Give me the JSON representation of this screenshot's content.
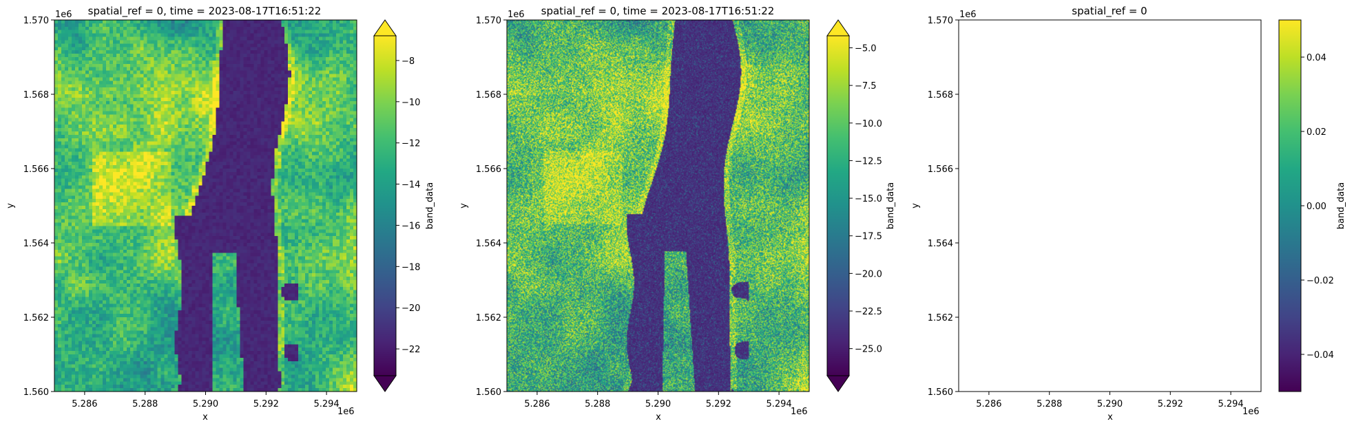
{
  "chart_data": [
    {
      "type": "heatmap",
      "title": "spatial_ref = 0, time = 2023-08-17T16:51:22",
      "xlabel": "x",
      "ylabel": "y",
      "x_offset_label": "1e6",
      "y_offset_label": "1e6",
      "xticks": [
        "5.286",
        "5.288",
        "5.290",
        "5.292",
        "5.294"
      ],
      "xtick_values": [
        5.286,
        5.288,
        5.29,
        5.292,
        5.294
      ],
      "yticks": [
        "1.560",
        "1.562",
        "1.564",
        "1.566",
        "1.568",
        "1.570"
      ],
      "ytick_values": [
        1.56,
        1.562,
        1.564,
        1.566,
        1.568,
        1.57
      ],
      "xlim": [
        5.285,
        5.295
      ],
      "ylim": [
        1.56,
        1.57
      ],
      "colorbar_label": "band_data",
      "colorbar_ticks": [
        "−8",
        "−10",
        "−12",
        "−14",
        "−16",
        "−18",
        "−20",
        "−22"
      ],
      "colorbar_tick_values": [
        -8,
        -10,
        -12,
        -14,
        -16,
        -18,
        -20,
        -22
      ],
      "colorbar_range": [
        -23.3,
        -6.8
      ],
      "colorbar_extend": "both",
      "colormap": "viridis",
      "resolution": "coarse"
    },
    {
      "type": "heatmap",
      "title": "spatial_ref = 0, time = 2023-08-17T16:51:22",
      "xlabel": "x",
      "ylabel": "y",
      "x_offset_label": "1e6",
      "y_offset_label": "1e6",
      "xticks": [
        "5.286",
        "5.288",
        "5.290",
        "5.292",
        "5.294"
      ],
      "xtick_values": [
        5.286,
        5.288,
        5.29,
        5.292,
        5.294
      ],
      "yticks": [
        "1.560",
        "1.562",
        "1.564",
        "1.566",
        "1.568",
        "1.570"
      ],
      "ytick_values": [
        1.56,
        1.562,
        1.564,
        1.566,
        1.568,
        1.57
      ],
      "xlim": [
        5.285,
        5.295
      ],
      "ylim": [
        1.56,
        1.57
      ],
      "colorbar_label": "band_data",
      "colorbar_ticks": [
        "−5.0",
        "−7.5",
        "−10.0",
        "−12.5",
        "−15.0",
        "−17.5",
        "−20.0",
        "−22.5",
        "−25.0"
      ],
      "colorbar_tick_values": [
        -5.0,
        -7.5,
        -10.0,
        -12.5,
        -15.0,
        -17.5,
        -20.0,
        -22.5,
        -25.0
      ],
      "colorbar_range": [
        -26.8,
        -4.2
      ],
      "colorbar_extend": "both",
      "colormap": "viridis",
      "resolution": "fine"
    },
    {
      "type": "heatmap",
      "title": "spatial_ref = 0",
      "xlabel": "x",
      "ylabel": "y",
      "x_offset_label": "1e6",
      "y_offset_label": "1e6",
      "xticks": [
        "5.286",
        "5.288",
        "5.290",
        "5.292",
        "5.294"
      ],
      "xtick_values": [
        5.286,
        5.288,
        5.29,
        5.292,
        5.294
      ],
      "yticks": [
        "1.560",
        "1.562",
        "1.564",
        "1.566",
        "1.568",
        "1.570"
      ],
      "ytick_values": [
        1.56,
        1.562,
        1.564,
        1.566,
        1.568,
        1.57
      ],
      "xlim": [
        5.285,
        5.295
      ],
      "ylim": [
        1.56,
        1.57
      ],
      "colorbar_label": "band_data",
      "colorbar_ticks": [
        "0.04",
        "0.02",
        "0.00",
        "−0.02",
        "−0.04"
      ],
      "colorbar_tick_values": [
        0.04,
        0.02,
        0.0,
        -0.02,
        -0.04
      ],
      "colorbar_range": [
        -0.05,
        0.05
      ],
      "colorbar_extend": "neither",
      "colormap": "viridis",
      "empty": true
    }
  ]
}
